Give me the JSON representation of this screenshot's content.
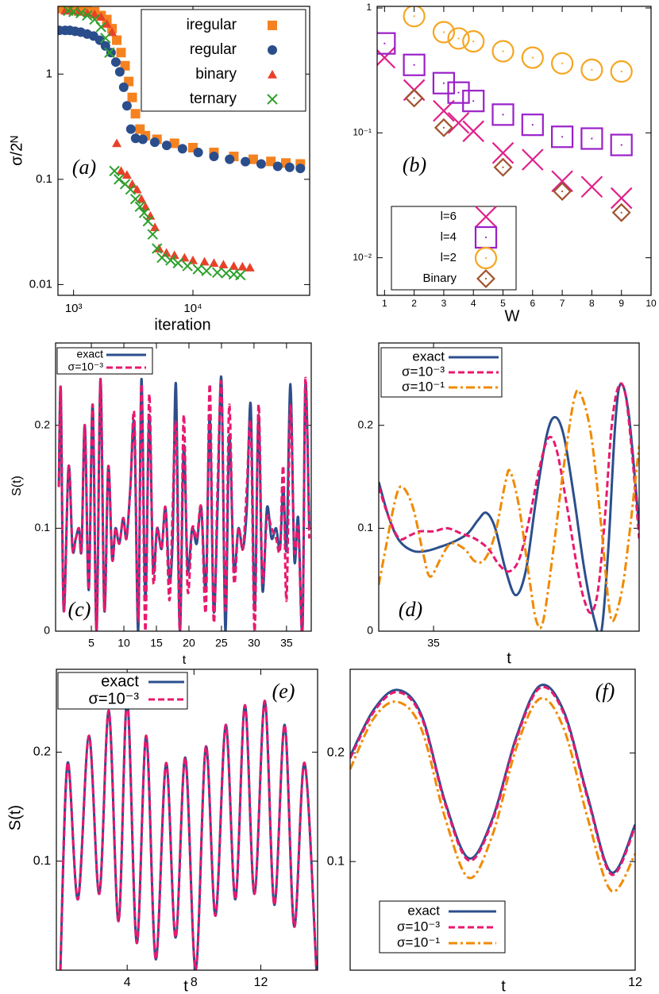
{
  "chart_data": [
    {
      "type": "scatter",
      "panel_label": "(a)",
      "xlabel": "iteration",
      "ylabel": "σ/2ᴺ",
      "xscale": "log",
      "yscale": "log",
      "grid": false,
      "legend": "upper right",
      "xlim": [
        740,
        95000
      ],
      "ylim": [
        0.0079,
        4.4
      ],
      "xticks": [
        {
          "value": 1000,
          "label": "10³"
        },
        {
          "value": 10000,
          "label": "10⁴"
        }
      ],
      "yticks": [
        1,
        0.1,
        0.01
      ],
      "series": [
        {
          "name": "iregular",
          "color": "#f58220",
          "marker": "square",
          "filled": true,
          "x": [
            800,
            900,
            1000,
            1150,
            1300,
            1500,
            1700,
            1900,
            2100,
            2300,
            2500,
            2700,
            2900,
            3100,
            3300,
            3600,
            4000,
            5000,
            7000,
            10000,
            15000,
            22000,
            32000,
            45000,
            60000,
            79400
          ],
          "values": [
            4.2,
            4.2,
            4.1,
            4.1,
            4.0,
            3.9,
            3.6,
            3.3,
            2.7,
            2.1,
            1.6,
            1.2,
            0.85,
            0.6,
            0.42,
            0.3,
            0.26,
            0.24,
            0.22,
            0.2,
            0.18,
            0.165,
            0.155,
            0.148,
            0.143,
            0.14
          ]
        },
        {
          "name": "regular",
          "color": "#2a4d8b",
          "marker": "circle",
          "filled": true,
          "x": [
            760,
            850,
            930,
            1030,
            1150,
            1300,
            1470,
            1660,
            1850,
            2060,
            2260,
            2440,
            2630,
            2800,
            3020,
            3310,
            3800,
            4790,
            6030,
            8170,
            11070,
            15000,
            20300,
            27500,
            37300,
            51300,
            64600,
            79400
          ],
          "values": [
            2.6,
            2.6,
            2.6,
            2.55,
            2.5,
            2.4,
            2.3,
            2.1,
            1.85,
            1.6,
            1.3,
            1.05,
            0.75,
            0.5,
            0.3,
            0.245,
            0.24,
            0.225,
            0.21,
            0.195,
            0.18,
            0.165,
            0.155,
            0.147,
            0.14,
            0.133,
            0.13,
            0.127
          ]
        },
        {
          "name": "binary",
          "color": "#e8412a",
          "marker": "triangle",
          "filled": true,
          "x": [
            850,
            950,
            1100,
            1300,
            1500,
            1700,
            1900,
            2100,
            2300,
            2500,
            2800,
            3100,
            3400,
            3700,
            4000,
            4400,
            4800,
            5200,
            6000,
            7000,
            8500,
            10000,
            12500,
            15000,
            18000,
            22000,
            26000,
            30000
          ],
          "values": [
            4.0,
            4.0,
            3.9,
            3.8,
            3.7,
            3.5,
            3.0,
            2.5,
            0.22,
            0.12,
            0.11,
            0.09,
            0.08,
            0.065,
            0.055,
            0.045,
            0.035,
            0.022,
            0.02,
            0.019,
            0.018,
            0.017,
            0.0165,
            0.016,
            0.0155,
            0.015,
            0.0148,
            0.0145
          ]
        },
        {
          "name": "ternary",
          "color": "#2ca02c",
          "marker": "x",
          "filled": true,
          "x": [
            900,
            1000,
            1150,
            1300,
            1500,
            1700,
            1850,
            2000,
            2200,
            2400,
            2700,
            3000,
            3300,
            3600,
            3900,
            4200,
            4600,
            5000,
            5500,
            6500,
            7500,
            9000,
            11000,
            13000,
            16000,
            19000,
            22000,
            25000
          ],
          "values": [
            4.0,
            3.9,
            3.8,
            3.6,
            3.3,
            2.8,
            2.2,
            1.6,
            0.12,
            0.1,
            0.09,
            0.08,
            0.065,
            0.055,
            0.048,
            0.04,
            0.03,
            0.022,
            0.018,
            0.017,
            0.016,
            0.015,
            0.014,
            0.0135,
            0.013,
            0.0128,
            0.0125,
            0.0123
          ]
        }
      ]
    },
    {
      "type": "scatter",
      "panel_label": "(b)",
      "xlabel": "W",
      "yscale": "log",
      "grid": false,
      "legend": "lower left",
      "xlim": [
        0.75,
        10
      ],
      "ylim": [
        0.005,
        1.03
      ],
      "xticks": [
        1,
        2,
        3,
        4,
        5,
        6,
        7,
        8,
        9,
        10
      ],
      "yticks": [
        1,
        {
          "value": 0.1,
          "label": "10⁻¹"
        },
        {
          "value": 0.01,
          "label": "10⁻²"
        }
      ],
      "series": [
        {
          "name": "l=6",
          "color": "#e0208a",
          "marker": "x",
          "filled": false,
          "dot": false,
          "x": [
            1,
            2,
            3,
            3.5,
            4,
            5,
            6,
            7,
            8,
            9
          ],
          "values": [
            0.4,
            0.22,
            0.15,
            0.12,
            0.103,
            0.069,
            0.061,
            0.041,
            0.037,
            0.03
          ]
        },
        {
          "name": "l=4",
          "color": "#9a20c8",
          "marker": "square",
          "filled": false,
          "dot": true,
          "x": [
            1,
            2,
            3,
            3.5,
            4,
            5,
            6,
            7,
            8,
            9
          ],
          "values": [
            0.52,
            0.35,
            0.25,
            0.21,
            0.18,
            0.14,
            0.116,
            0.093,
            0.09,
            0.08
          ]
        },
        {
          "name": "l=2",
          "color": "#f5a623",
          "marker": "circle",
          "filled": false,
          "dot": true,
          "x": [
            2,
            3,
            3.5,
            4,
            5,
            6,
            7,
            8,
            9
          ],
          "values": [
            0.86,
            0.64,
            0.57,
            0.54,
            0.45,
            0.4,
            0.36,
            0.32,
            0.31
          ]
        },
        {
          "name": "Binary",
          "color": "#a0522d",
          "marker": "diamond",
          "filled": false,
          "dot": true,
          "x": [
            2,
            3,
            5,
            7,
            9
          ],
          "values": [
            0.19,
            0.11,
            0.053,
            0.034,
            0.023
          ]
        }
      ]
    },
    {
      "type": "line",
      "panel_label": "(c)",
      "xlabel": "t",
      "ylabel": "S(t)",
      "grid": false,
      "legend": "upper left",
      "xlim": [
        -0.5,
        38.8
      ],
      "ylim": [
        0,
        0.28
      ],
      "xticks": [
        5,
        10,
        15,
        20,
        25,
        30,
        35
      ],
      "yticks": [
        0,
        0.1,
        0.2
      ],
      "x": [
        0,
        0.3,
        0.75,
        1.5,
        2.1,
        2.6,
        3.1,
        3.5,
        4.0,
        4.6,
        5.2,
        5.8,
        6.4,
        7.0,
        7.6,
        8.2,
        8.7,
        9.3,
        9.9,
        10.4,
        11.0,
        11.6,
        12.2,
        12.7,
        13.3,
        13.9,
        14.5,
        15.1,
        15.8,
        16.4,
        17.0,
        17.5,
        18.0,
        18.6,
        19.2,
        19.8,
        20.5,
        21.2,
        21.9,
        22.6,
        23.2,
        23.8,
        24.4,
        25.0,
        25.6,
        26.2,
        26.9,
        27.6,
        28.3,
        28.9,
        29.5,
        30.1,
        30.7,
        31.3,
        32.0,
        32.7,
        33.4,
        34.0,
        34.5,
        35.0,
        35.6,
        36.2,
        36.8,
        37.45,
        37.9,
        38.5
      ],
      "series": [
        {
          "name": "exact",
          "color": "#2c4f8c",
          "dash": "solid",
          "values": [
            0.14,
            0.235,
            0.02,
            0.16,
            0.08,
            0.09,
            0.1,
            0.08,
            0.2,
            0.04,
            0.22,
            0.0,
            0.245,
            0.02,
            0.16,
            0.07,
            0.1,
            0.085,
            0.11,
            0.09,
            0.14,
            0.2,
            0.0,
            0.245,
            0.03,
            0.21,
            0.06,
            0.1,
            0.08,
            0.12,
            0.05,
            0.09,
            0.24,
            0.0,
            0.18,
            0.06,
            0.1,
            0.085,
            0.12,
            0.04,
            0.21,
            0.02,
            0.12,
            0.245,
            0.0,
            0.19,
            0.06,
            0.1,
            0.08,
            0.12,
            0.22,
            0.02,
            0.21,
            0.04,
            0.12,
            0.09,
            0.1,
            0.08,
            0.14,
            0.08,
            0.24,
            0.07,
            0.11,
            0.0,
            0.24,
            0.1
          ]
        },
        {
          "name": "σ=10⁻³",
          "color": "#e8196e",
          "dash": "dash",
          "values": [
            0.14,
            0.235,
            0.02,
            0.16,
            0.08,
            0.09,
            0.1,
            0.08,
            0.2,
            0.04,
            0.22,
            0.0,
            0.245,
            0.02,
            0.16,
            0.07,
            0.1,
            0.085,
            0.11,
            0.09,
            0.14,
            0.21,
            0.01,
            0.24,
            0.0,
            0.23,
            0.05,
            0.1,
            0.08,
            0.12,
            0.03,
            0.12,
            0.2,
            0.0,
            0.21,
            0.04,
            0.1,
            0.09,
            0.12,
            0.02,
            0.24,
            0.01,
            0.14,
            0.24,
            0.02,
            0.22,
            0.05,
            0.1,
            0.08,
            0.14,
            0.2,
            0.0,
            0.22,
            0.05,
            0.11,
            0.1,
            0.09,
            0.08,
            0.16,
            0.03,
            0.22,
            0.08,
            0.1,
            0.0,
            0.245,
            0.09
          ]
        }
      ]
    },
    {
      "type": "line",
      "panel_label": "(d)",
      "xlabel": "t",
      "grid": false,
      "legend": "upper left",
      "xlim": [
        34.2,
        38.0
      ],
      "ylim": [
        0,
        0.28
      ],
      "xticks": [
        35
      ],
      "yticks": [
        0,
        0.1,
        0.2
      ],
      "series": [
        {
          "name": "exact",
          "color": "#2c4f8c",
          "dash": "solid",
          "x": [
            34.2,
            34.35,
            34.5,
            34.7,
            34.9,
            35.1,
            35.3,
            35.5,
            35.65,
            35.77,
            35.9,
            36.05,
            36.2,
            36.35,
            36.5,
            36.65,
            36.77,
            36.9,
            37.05,
            37.2,
            37.35,
            37.45,
            37.55,
            37.65,
            37.73,
            37.85,
            38.0
          ],
          "values": [
            0.145,
            0.11,
            0.088,
            0.078,
            0.078,
            0.082,
            0.087,
            0.095,
            0.108,
            0.115,
            0.1,
            0.06,
            0.035,
            0.06,
            0.13,
            0.19,
            0.208,
            0.19,
            0.13,
            0.06,
            0.01,
            0.0,
            0.08,
            0.2,
            0.24,
            0.21,
            0.1
          ]
        },
        {
          "name": "σ=10⁻³",
          "color": "#e8196e",
          "dash": "dash",
          "x": [
            34.2,
            34.35,
            34.5,
            34.65,
            34.8,
            35.0,
            35.2,
            35.4,
            35.6,
            35.8,
            35.95,
            36.1,
            36.25,
            36.4,
            36.55,
            36.68,
            36.8,
            36.95,
            37.1,
            37.2,
            37.3,
            37.4,
            37.5,
            37.6,
            37.7,
            37.8,
            37.9,
            38.0
          ],
          "values": [
            0.14,
            0.11,
            0.09,
            0.093,
            0.097,
            0.097,
            0.1,
            0.095,
            0.09,
            0.08,
            0.065,
            0.058,
            0.07,
            0.11,
            0.16,
            0.188,
            0.175,
            0.12,
            0.06,
            0.03,
            0.018,
            0.04,
            0.11,
            0.2,
            0.238,
            0.23,
            0.17,
            0.09
          ]
        },
        {
          "name": "σ=10⁻¹",
          "color": "#f08a00",
          "dash": "dashdot",
          "x": [
            34.2,
            34.3,
            34.45,
            34.55,
            34.7,
            34.85,
            34.95,
            35.1,
            35.25,
            35.45,
            35.6,
            35.75,
            35.9,
            36.05,
            36.12,
            36.25,
            36.4,
            36.5,
            36.6,
            36.75,
            36.9,
            37.05,
            37.15,
            37.3,
            37.45,
            37.55,
            37.62,
            37.75,
            37.85,
            37.95,
            38.0
          ],
          "values": [
            0.045,
            0.08,
            0.13,
            0.14,
            0.12,
            0.075,
            0.053,
            0.07,
            0.085,
            0.08,
            0.068,
            0.07,
            0.095,
            0.145,
            0.155,
            0.12,
            0.05,
            0.01,
            0.01,
            0.08,
            0.16,
            0.225,
            0.23,
            0.19,
            0.1,
            0.03,
            0.01,
            0.04,
            0.09,
            0.15,
            0.18
          ]
        }
      ]
    },
    {
      "type": "line",
      "panel_label": "(e)",
      "xlabel": "t",
      "ylabel": "S(t)",
      "grid": false,
      "legend": "upper left",
      "xlim": [
        -0.24,
        15.4
      ],
      "ylim": [
        0,
        0.276
      ],
      "xticks": [
        4,
        8,
        12
      ],
      "yticks": [
        0.1,
        0.2
      ],
      "x": [
        0,
        0.43,
        1.05,
        1.71,
        2.33,
        2.9,
        3.48,
        4.0,
        4.57,
        5.14,
        5.71,
        6.33,
        6.9,
        7.48,
        8.1,
        8.71,
        9.29,
        9.9,
        10.48,
        11.05,
        11.62,
        12.24,
        12.81,
        13.43,
        14.0,
        14.62,
        15.33
      ],
      "series": [
        {
          "name": "exact",
          "color": "#2c4f8c",
          "dash": "solid",
          "values": [
            0.0,
            0.19,
            0.065,
            0.215,
            0.07,
            0.238,
            0.045,
            0.248,
            0.025,
            0.215,
            0.01,
            0.19,
            0.03,
            0.195,
            0.0,
            0.205,
            0.05,
            0.225,
            0.065,
            0.243,
            0.07,
            0.247,
            0.06,
            0.225,
            0.04,
            0.19,
            0.0
          ]
        },
        {
          "name": "σ=10⁻³",
          "color": "#e8196e",
          "dash": "dash",
          "values": [
            0.0,
            0.19,
            0.065,
            0.215,
            0.07,
            0.238,
            0.045,
            0.248,
            0.025,
            0.215,
            0.01,
            0.19,
            0.03,
            0.195,
            0.0,
            0.205,
            0.05,
            0.225,
            0.065,
            0.243,
            0.07,
            0.247,
            0.06,
            0.225,
            0.04,
            0.19,
            0.0
          ]
        }
      ]
    },
    {
      "type": "line",
      "panel_label": "(f)",
      "xlabel": "t",
      "grid": false,
      "legend": "lower left",
      "xlim": [
        9,
        12
      ],
      "ylim": [
        0,
        0.277
      ],
      "xticks": [
        12
      ],
      "yticks": [
        0.1,
        0.2
      ],
      "x": [
        9,
        9.25,
        9.5,
        9.75,
        10,
        10.25,
        10.5,
        10.75,
        11,
        11.25,
        11.5,
        11.75,
        12
      ],
      "series": [
        {
          "name": "exact",
          "color": "#2c4f8c",
          "dash": "solid",
          "values": [
            0.197,
            0.24,
            0.258,
            0.235,
            0.155,
            0.103,
            0.14,
            0.215,
            0.262,
            0.238,
            0.16,
            0.09,
            0.134
          ]
        },
        {
          "name": "σ=10⁻³",
          "color": "#e8196e",
          "dash": "dash",
          "values": [
            0.195,
            0.238,
            0.256,
            0.233,
            0.153,
            0.101,
            0.138,
            0.213,
            0.26,
            0.236,
            0.158,
            0.088,
            0.132
          ]
        },
        {
          "name": "σ=10⁻¹",
          "color": "#f08a00",
          "dash": "dashdot",
          "values": [
            0.185,
            0.232,
            0.247,
            0.222,
            0.14,
            0.085,
            0.125,
            0.205,
            0.25,
            0.222,
            0.14,
            0.073,
            0.107
          ]
        }
      ]
    }
  ]
}
